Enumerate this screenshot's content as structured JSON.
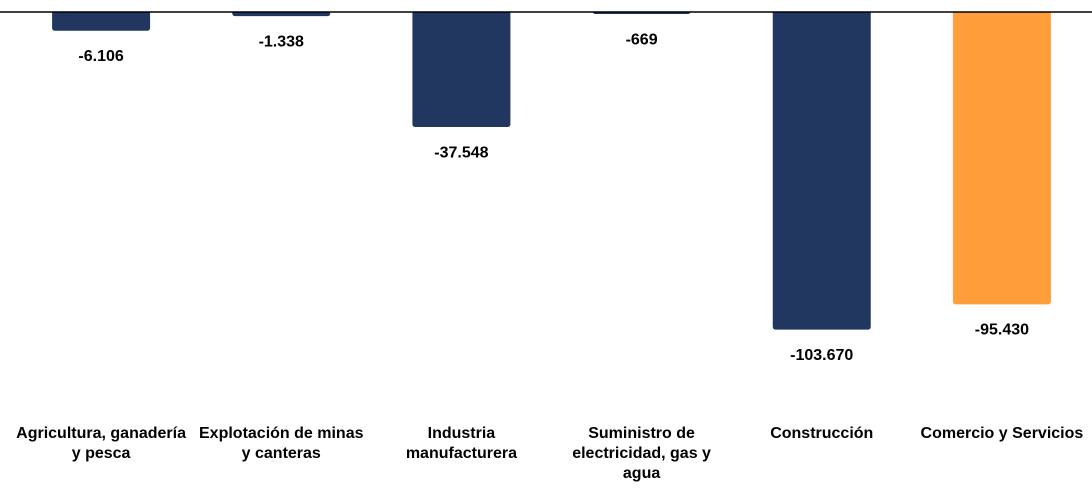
{
  "chart_data": {
    "type": "bar",
    "categories": [
      "Agricultura, ganadería y pesca",
      "Explotación de minas y canteras",
      "Industria manufacturera",
      "Suministro de electricidad, gas y agua",
      "Construcción",
      "Comercio y Servicios"
    ],
    "values": [
      -6106,
      -1338,
      -37548,
      -669,
      -103670,
      -95430
    ],
    "value_labels": [
      "-6.106",
      "-1.338",
      "-37.548",
      "-669",
      "-103.670",
      "-95.430"
    ],
    "colors": [
      "#22375f",
      "#22375f",
      "#22375f",
      "#22375f",
      "#22375f",
      "#ff9e3b"
    ],
    "ylim": [
      -110000,
      0
    ]
  }
}
